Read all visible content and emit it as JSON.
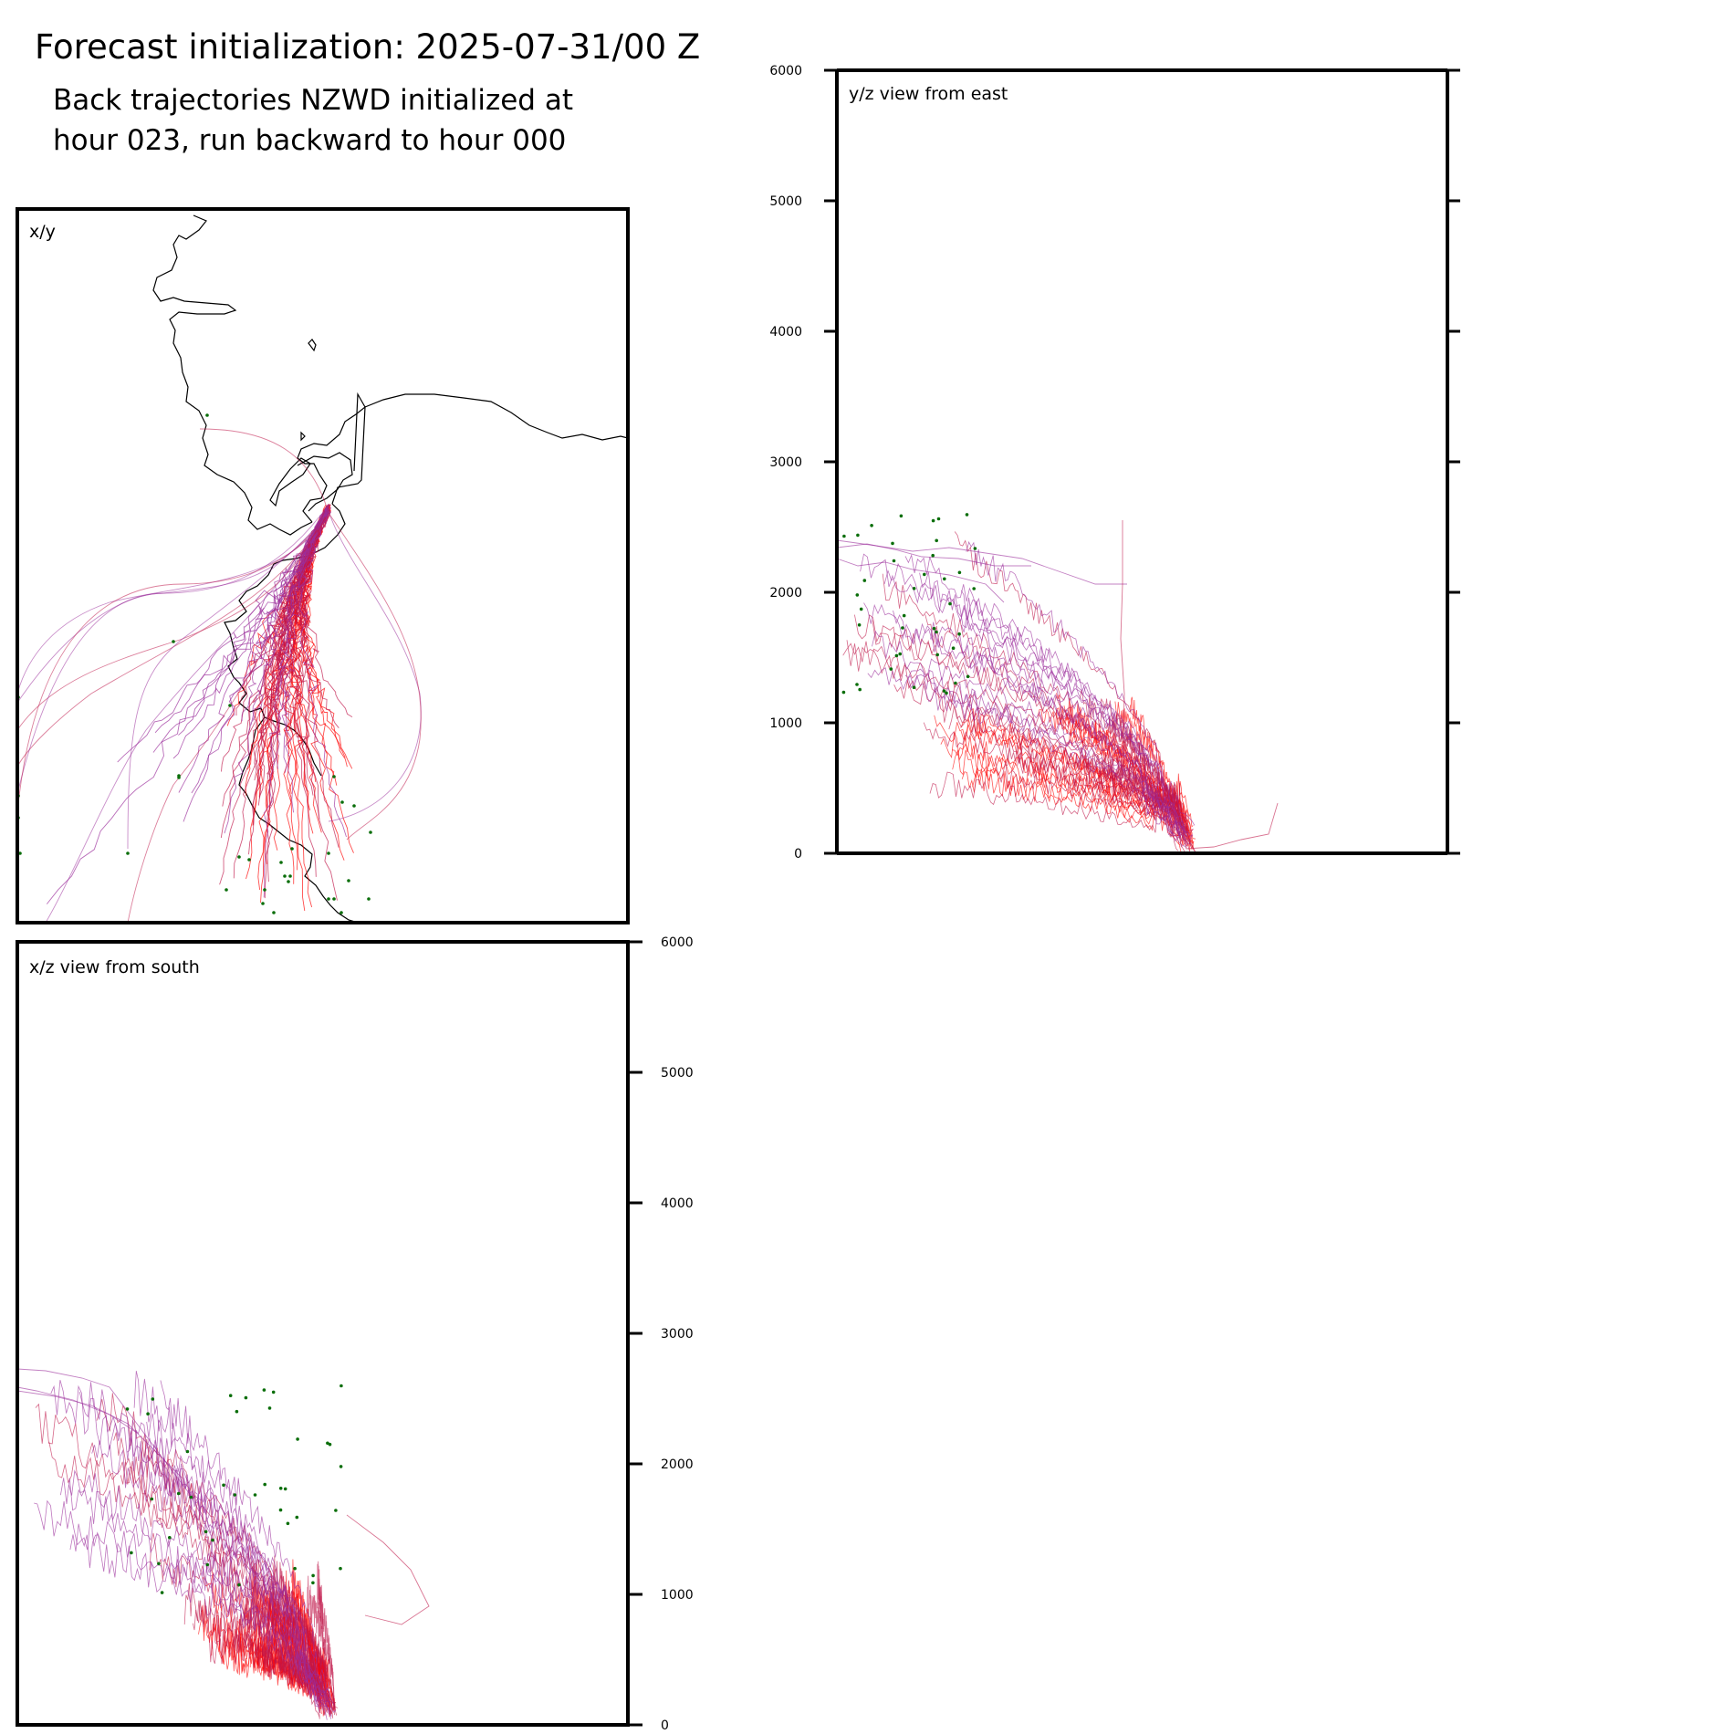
{
  "header": {
    "title": "Forecast initialization: 2025-07-31/00 Z",
    "subtitle_line1": "Back trajectories NZWD initialized at",
    "subtitle_line2": "hour 023, run backward to hour 000"
  },
  "colors": {
    "early": "#9b2d9b",
    "mid": "#c0174a",
    "late": "#ff0000",
    "endpoint": "#0a6e0a",
    "coast": "#000000"
  },
  "chart_data": [
    {
      "id": "xy",
      "type": "line",
      "panel_label": "x/y",
      "description_series": "trajectory lines converging on NZWD"
    },
    {
      "id": "yz",
      "type": "line",
      "panel_label": "y/z view from east",
      "ylim": [
        0,
        6000
      ],
      "y_ticks": [
        "0",
        "1000",
        "2000",
        "3000",
        "4000",
        "5000",
        "6000"
      ],
      "tick_side": "left"
    },
    {
      "id": "xz",
      "type": "line",
      "panel_label": "x/z view from south",
      "ylim": [
        0,
        6000
      ],
      "y_ticks": [
        "0",
        "1000",
        "2000",
        "3000",
        "4000",
        "5000",
        "6000"
      ],
      "tick_side": "right"
    }
  ]
}
